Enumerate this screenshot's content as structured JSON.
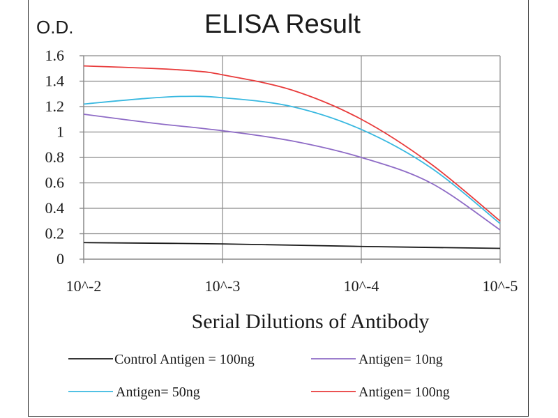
{
  "chart_data": {
    "type": "line",
    "title": "ELISA Result",
    "ylabel": "O.D.",
    "xlabel": "Serial Dilutions of Antibody",
    "x": [
      "10^-2",
      "10^-3",
      "10^-4",
      "10^-5"
    ],
    "x_scale": "log",
    "ylim": [
      0,
      1.6
    ],
    "yticks": [
      "0",
      "0.2",
      "0.4",
      "0.6",
      "0.8",
      "1",
      "1.2",
      "1.4",
      "1.6"
    ],
    "grid": true,
    "legend_position": "bottom",
    "series": [
      {
        "name": "Control Antigen = 100ng",
        "color": "#1a1a1a",
        "points": [
          [
            0,
            0.13
          ],
          [
            1,
            0.12
          ],
          [
            2,
            0.1
          ],
          [
            3,
            0.085
          ]
        ]
      },
      {
        "name": "Antigen= 10ng",
        "color": "#8e6bc6",
        "points": [
          [
            0,
            1.14
          ],
          [
            0.5,
            1.07
          ],
          [
            1,
            1.01
          ],
          [
            1.5,
            0.93
          ],
          [
            2,
            0.8
          ],
          [
            2.5,
            0.6
          ],
          [
            3,
            0.23
          ]
        ]
      },
      {
        "name": "Antigen= 50ng",
        "color": "#38b8e0",
        "points": [
          [
            0,
            1.22
          ],
          [
            0.4,
            1.26
          ],
          [
            0.7,
            1.28
          ],
          [
            1,
            1.27
          ],
          [
            1.5,
            1.2
          ],
          [
            2,
            1.02
          ],
          [
            2.5,
            0.72
          ],
          [
            3,
            0.28
          ]
        ]
      },
      {
        "name": "Antigen= 100ng",
        "color": "#e83a3a",
        "points": [
          [
            0,
            1.52
          ],
          [
            0.5,
            1.5
          ],
          [
            0.8,
            1.48
          ],
          [
            1,
            1.45
          ],
          [
            1.5,
            1.33
          ],
          [
            2,
            1.1
          ],
          [
            2.5,
            0.75
          ],
          [
            3,
            0.3
          ]
        ]
      }
    ]
  }
}
